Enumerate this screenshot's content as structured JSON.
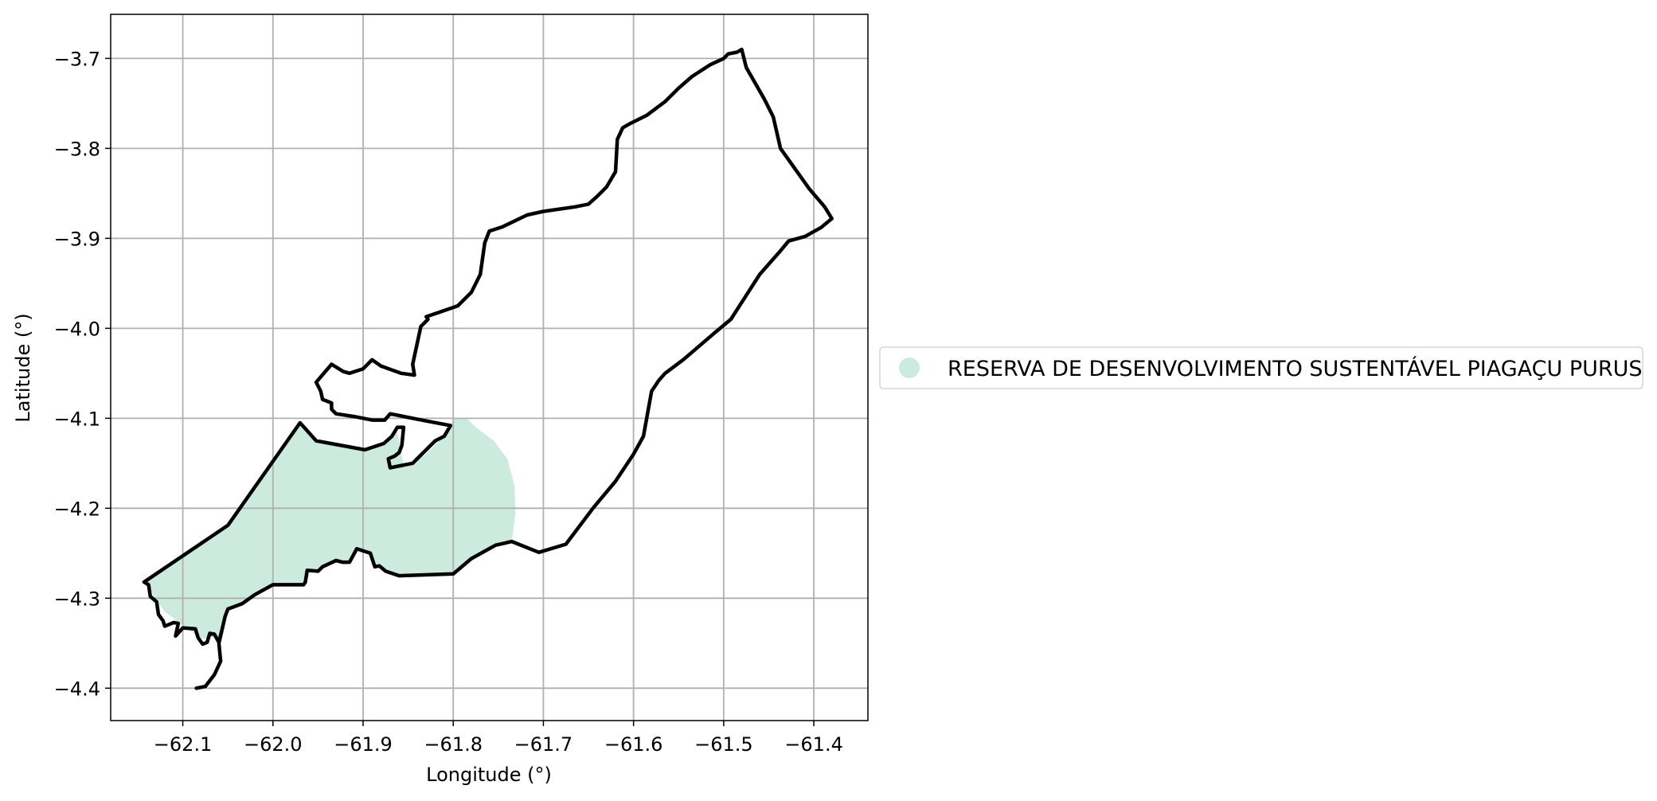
{
  "map": {
    "xlabel": "Longitude (°)",
    "ylabel": "Latitude (°)",
    "xlim": [
      -62.18,
      -61.34
    ],
    "ylim": [
      -4.436,
      -3.651
    ],
    "x_ticks": [
      -62.1,
      -62.0,
      -61.9,
      -61.8,
      -61.7,
      -61.6,
      -61.5,
      -61.4
    ],
    "y_ticks": [
      -3.7,
      -3.8,
      -3.9,
      -4.0,
      -4.1,
      -4.2,
      -4.3,
      -4.4
    ],
    "x_tick_labels": [
      "−62.1",
      "−62.0",
      "−61.9",
      "−61.8",
      "−61.7",
      "−61.6",
      "−61.5",
      "−61.4"
    ],
    "y_tick_labels": [
      "−3.7",
      "−3.8",
      "−3.9",
      "−4.0",
      "−4.1",
      "−4.2",
      "−4.3",
      "−4.4"
    ],
    "grid": true,
    "legend": {
      "placement": "right",
      "label": "RESERVA DE DESENVOLVIMENTO SUSTENTÁVEL PIAGAÇU PURUS",
      "color": "#cdeade"
    },
    "colors": {
      "fill": "#cdeade",
      "boundary": "#000000",
      "grid": "#b0b0b0",
      "frame": "#000000"
    },
    "fill_area": [
      [
        -61.785,
        -4.1
      ],
      [
        -61.775,
        -4.11
      ],
      [
        -61.755,
        -4.125
      ],
      [
        -61.74,
        -4.145
      ],
      [
        -61.732,
        -4.175
      ],
      [
        -61.731,
        -4.205
      ],
      [
        -61.735,
        -4.237
      ],
      [
        -61.75,
        -4.241
      ],
      [
        -61.78,
        -4.256
      ],
      [
        -61.8,
        -4.273
      ],
      [
        -61.86,
        -4.275
      ],
      [
        -61.875,
        -4.27
      ],
      [
        -61.882,
        -4.264
      ],
      [
        -61.887,
        -4.265
      ],
      [
        -61.892,
        -4.25
      ],
      [
        -61.907,
        -4.245
      ],
      [
        -61.915,
        -4.26
      ],
      [
        -61.923,
        -4.26
      ],
      [
        -61.93,
        -4.258
      ],
      [
        -61.945,
        -4.265
      ],
      [
        -61.95,
        -4.27
      ],
      [
        -61.962,
        -4.269
      ],
      [
        -61.964,
        -4.282
      ],
      [
        -61.966,
        -4.285
      ],
      [
        -62.0,
        -4.285
      ],
      [
        -62.02,
        -4.296
      ],
      [
        -62.034,
        -4.306
      ],
      [
        -62.05,
        -4.312
      ],
      [
        -62.053,
        -4.32
      ],
      [
        -62.06,
        -4.343
      ],
      [
        -62.08,
        -4.345
      ],
      [
        -62.1,
        -4.33
      ],
      [
        -62.12,
        -4.315
      ],
      [
        -62.132,
        -4.298
      ],
      [
        -62.138,
        -4.287
      ],
      [
        -62.143,
        -4.282
      ],
      [
        -62.05,
        -4.219
      ],
      [
        -61.97,
        -4.105
      ],
      [
        -61.952,
        -4.125
      ],
      [
        -61.898,
        -4.135
      ],
      [
        -61.877,
        -4.128
      ],
      [
        -61.868,
        -4.12
      ],
      [
        -61.862,
        -4.115
      ],
      [
        -61.855,
        -4.153
      ],
      [
        -61.832,
        -4.141
      ],
      [
        -61.81,
        -4.12
      ],
      [
        -61.803,
        -4.108
      ],
      [
        -61.8,
        -4.1
      ]
    ],
    "boundary": [
      [
        -61.48,
        -3.69
      ],
      [
        -61.475,
        -3.71
      ],
      [
        -61.455,
        -3.745
      ],
      [
        -61.445,
        -3.765
      ],
      [
        -61.437,
        -3.8
      ],
      [
        -61.405,
        -3.845
      ],
      [
        -61.388,
        -3.865
      ],
      [
        -61.38,
        -3.878
      ],
      [
        -61.392,
        -3.888
      ],
      [
        -61.41,
        -3.898
      ],
      [
        -61.428,
        -3.903
      ],
      [
        -61.438,
        -3.915
      ],
      [
        -61.46,
        -3.94
      ],
      [
        -61.492,
        -3.99
      ],
      [
        -61.51,
        -4.005
      ],
      [
        -61.545,
        -4.035
      ],
      [
        -61.565,
        -4.05
      ],
      [
        -61.572,
        -4.058
      ],
      [
        -61.58,
        -4.07
      ],
      [
        -61.589,
        -4.12
      ],
      [
        -61.6,
        -4.14
      ],
      [
        -61.62,
        -4.17
      ],
      [
        -61.645,
        -4.2
      ],
      [
        -61.675,
        -4.24
      ],
      [
        -61.705,
        -4.249
      ],
      [
        -61.735,
        -4.237
      ],
      [
        -61.753,
        -4.241
      ],
      [
        -61.78,
        -4.256
      ],
      [
        -61.8,
        -4.273
      ],
      [
        -61.86,
        -4.275
      ],
      [
        -61.875,
        -4.27
      ],
      [
        -61.882,
        -4.264
      ],
      [
        -61.887,
        -4.265
      ],
      [
        -61.892,
        -4.25
      ],
      [
        -61.907,
        -4.245
      ],
      [
        -61.915,
        -4.26
      ],
      [
        -61.923,
        -4.26
      ],
      [
        -61.93,
        -4.258
      ],
      [
        -61.945,
        -4.265
      ],
      [
        -61.95,
        -4.27
      ],
      [
        -61.962,
        -4.269
      ],
      [
        -61.964,
        -4.282
      ],
      [
        -61.966,
        -4.285
      ],
      [
        -62.0,
        -4.285
      ],
      [
        -62.02,
        -4.296
      ],
      [
        -62.034,
        -4.306
      ],
      [
        -62.05,
        -4.312
      ],
      [
        -62.053,
        -4.32
      ],
      [
        -62.057,
        -4.337
      ],
      [
        -62.06,
        -4.349
      ],
      [
        -62.065,
        -4.34
      ],
      [
        -62.07,
        -4.339
      ],
      [
        -62.073,
        -4.349
      ],
      [
        -62.078,
        -4.351
      ],
      [
        -62.083,
        -4.344
      ],
      [
        -62.086,
        -4.334
      ],
      [
        -62.1,
        -4.333
      ],
      [
        -62.108,
        -4.342
      ],
      [
        -62.105,
        -4.328
      ],
      [
        -62.11,
        -4.327
      ],
      [
        -62.12,
        -4.331
      ],
      [
        -62.122,
        -4.325
      ],
      [
        -62.127,
        -4.318
      ],
      [
        -62.129,
        -4.304
      ],
      [
        -62.136,
        -4.298
      ],
      [
        -62.138,
        -4.285
      ],
      [
        -62.143,
        -4.282
      ],
      [
        -62.05,
        -4.219
      ],
      [
        -61.97,
        -4.105
      ],
      [
        -61.952,
        -4.125
      ],
      [
        -61.898,
        -4.135
      ],
      [
        -61.877,
        -4.128
      ],
      [
        -61.868,
        -4.12
      ],
      [
        -61.862,
        -4.11
      ],
      [
        -61.855,
        -4.11
      ],
      [
        -61.857,
        -4.13
      ],
      [
        -61.86,
        -4.138
      ],
      [
        -61.865,
        -4.142
      ],
      [
        -61.872,
        -4.145
      ],
      [
        -61.87,
        -4.155
      ],
      [
        -61.845,
        -4.15
      ],
      [
        -61.835,
        -4.14
      ],
      [
        -61.82,
        -4.125
      ],
      [
        -61.81,
        -4.12
      ],
      [
        -61.803,
        -4.108
      ],
      [
        -61.83,
        -4.103
      ],
      [
        -61.87,
        -4.095
      ],
      [
        -61.876,
        -4.102
      ],
      [
        -61.89,
        -4.102
      ],
      [
        -61.91,
        -4.098
      ],
      [
        -61.93,
        -4.095
      ],
      [
        -61.935,
        -4.09
      ],
      [
        -61.935,
        -4.083
      ],
      [
        -61.945,
        -4.079
      ],
      [
        -61.947,
        -4.07
      ],
      [
        -61.952,
        -4.06
      ],
      [
        -61.935,
        -4.04
      ],
      [
        -61.922,
        -4.048
      ],
      [
        -61.915,
        -4.05
      ],
      [
        -61.9,
        -4.045
      ],
      [
        -61.89,
        -4.035
      ],
      [
        -61.88,
        -4.042
      ],
      [
        -61.858,
        -4.05
      ],
      [
        -61.843,
        -4.052
      ],
      [
        -61.845,
        -4.04
      ],
      [
        -61.836,
        -3.998
      ],
      [
        -61.828,
        -3.99
      ],
      [
        -61.83,
        -3.987
      ],
      [
        -61.815,
        -3.982
      ],
      [
        -61.795,
        -3.975
      ],
      [
        -61.78,
        -3.96
      ],
      [
        -61.77,
        -3.94
      ],
      [
        -61.765,
        -3.905
      ],
      [
        -61.76,
        -3.892
      ],
      [
        -61.745,
        -3.887
      ],
      [
        -61.718,
        -3.874
      ],
      [
        -61.7,
        -3.87
      ],
      [
        -61.665,
        -3.865
      ],
      [
        -61.65,
        -3.862
      ],
      [
        -61.64,
        -3.853
      ],
      [
        -61.63,
        -3.843
      ],
      [
        -61.62,
        -3.826
      ],
      [
        -61.618,
        -3.79
      ],
      [
        -61.612,
        -3.777
      ],
      [
        -61.605,
        -3.773
      ],
      [
        -61.585,
        -3.763
      ],
      [
        -61.565,
        -3.748
      ],
      [
        -61.55,
        -3.733
      ],
      [
        -61.535,
        -3.72
      ],
      [
        -61.515,
        -3.707
      ],
      [
        -61.5,
        -3.7
      ],
      [
        -61.495,
        -3.695
      ],
      [
        -61.485,
        -3.693
      ],
      [
        -61.48,
        -3.69
      ]
    ],
    "boundary_tail": [
      [
        -62.057,
        -4.337
      ],
      [
        -62.06,
        -4.35
      ],
      [
        -62.058,
        -4.37
      ],
      [
        -62.065,
        -4.385
      ],
      [
        -62.075,
        -4.398
      ],
      [
        -62.085,
        -4.4
      ]
    ]
  }
}
